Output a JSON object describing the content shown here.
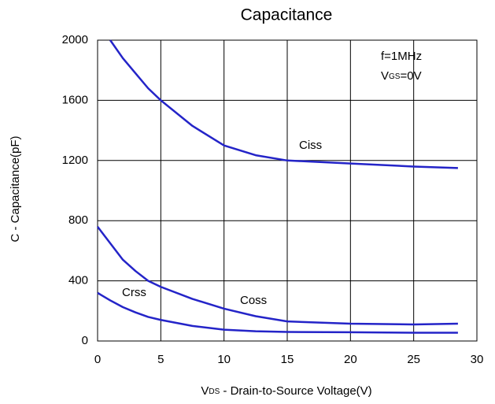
{
  "chart_data": {
    "type": "line",
    "title": "Capacitance",
    "xlabel": [
      "V",
      "DS",
      " - Drain-to-Source Voltage(V)"
    ],
    "ylabel": "C - Capacitance(pF)",
    "annotations": [
      [
        "f=1MHz"
      ],
      [
        "V",
        "GS",
        "=0V"
      ]
    ],
    "x": [
      0,
      1,
      2,
      3,
      4,
      5,
      7.5,
      10,
      12.5,
      15,
      20,
      25,
      28.5
    ],
    "series": [
      {
        "name": "Ciss",
        "color": "#2424c8",
        "values": [
          null,
          2000,
          1880,
          1780,
          1680,
          1600,
          1430,
          1300,
          1235,
          1200,
          1180,
          1160,
          1150
        ]
      },
      {
        "name": "Coss",
        "color": "#2424c8",
        "values": [
          760,
          650,
          540,
          465,
          400,
          360,
          280,
          215,
          165,
          130,
          115,
          110,
          115
        ]
      },
      {
        "name": "Crss",
        "color": "#2424c8",
        "values": [
          320,
          270,
          225,
          190,
          160,
          140,
          100,
          75,
          65,
          60,
          58,
          55,
          55
        ]
      }
    ],
    "xlim": [
      0,
      30
    ],
    "xticks": [
      0,
      5,
      10,
      15,
      20,
      25,
      30
    ],
    "ylim": [
      0,
      2000
    ],
    "yticks": [
      0,
      400,
      800,
      1200,
      1600,
      2000
    ],
    "grid": true
  }
}
